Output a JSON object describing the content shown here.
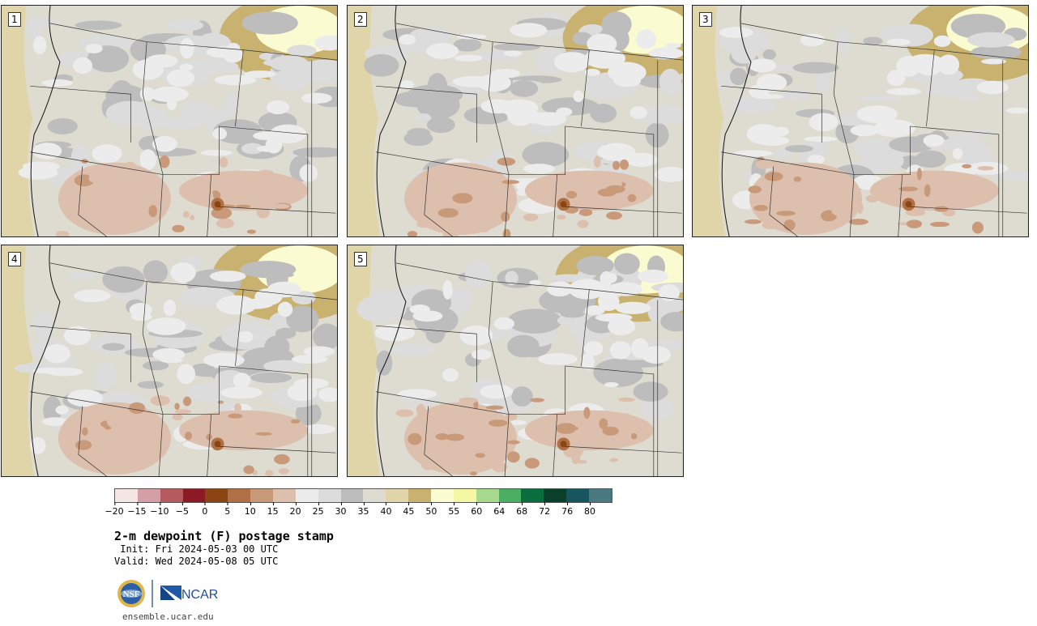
{
  "panels": [
    {
      "label": "1"
    },
    {
      "label": "2"
    },
    {
      "label": "3"
    },
    {
      "label": "4"
    },
    {
      "label": "5"
    }
  ],
  "colorbar": {
    "colors": [
      "#f5e6e6",
      "#d4a0a5",
      "#b55a5f",
      "#8b1a24",
      "#8b4513",
      "#b07045",
      "#c89a7a",
      "#ddbfad",
      "#ececec",
      "#dcdcdc",
      "#bdbdbd",
      "#dedcd0",
      "#e0d5a8",
      "#c9b26f",
      "#fbfbd2",
      "#f4f7a4",
      "#a7d98e",
      "#4cae63",
      "#0a6e3e",
      "#0a3f2a",
      "#17555f",
      "#4a7a80"
    ],
    "tick_labels": [
      "−20",
      "−15",
      "−10",
      "−5",
      "0",
      "5",
      "10",
      "15",
      "20",
      "25",
      "30",
      "35",
      "40",
      "45",
      "50",
      "55",
      "60",
      "64",
      "68",
      "72",
      "76",
      "80"
    ]
  },
  "title": "2-m dewpoint (F) postage stamp",
  "init": " Init: Fri 2024-05-03 00 UTC",
  "valid": "Valid: Wed 2024-05-08 05 UTC",
  "logos": {
    "nsf": "NSF",
    "ncar": "NCAR"
  },
  "url": "ensemble.ucar.edu"
}
